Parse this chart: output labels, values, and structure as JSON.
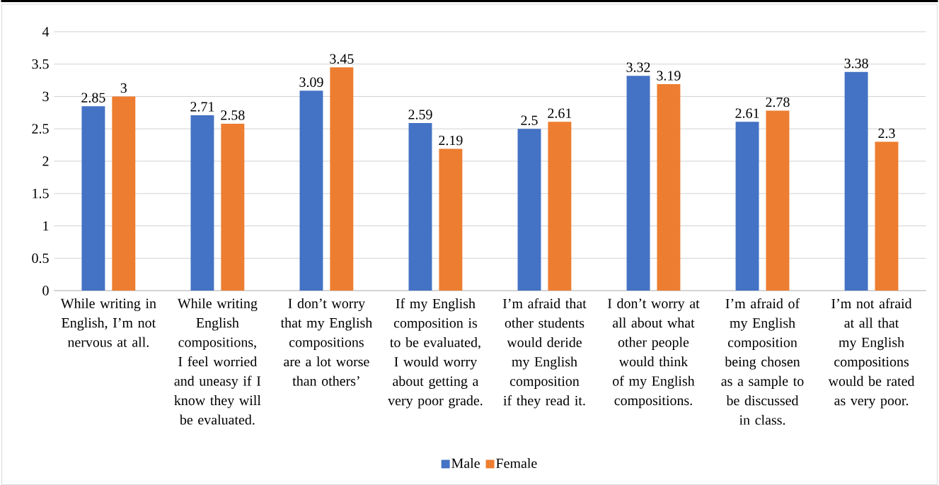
{
  "chart_data": {
    "type": "bar",
    "categories": [
      "While writing in English, I’m not nervous at all.",
      "While writing English compositions, I feel worried and uneasy if I know they will be evaluated.",
      "I don’t worry that my English compositions are a lot worse than others’",
      "If my English composition is to be evaluated, I would worry about getting a very poor grade.",
      "I’m afraid that other students would deride my English composition if they read it.",
      "I don’t worry at all about what other people would think of my English compositions.",
      "I’m afraid of my English composition being chosen as a sample to be discussed in class.",
      "I’m not afraid at all that my English compositions would be rated as very poor."
    ],
    "series": [
      {
        "name": "Male",
        "color": "#4472c4",
        "values": [
          2.85,
          2.71,
          3.09,
          2.59,
          2.5,
          3.32,
          2.61,
          3.38
        ]
      },
      {
        "name": "Female",
        "color": "#ed7d31",
        "values": [
          3,
          2.58,
          3.45,
          2.19,
          2.61,
          3.19,
          2.78,
          2.3
        ]
      }
    ],
    "ylim": [
      0,
      4
    ],
    "yticks": [
      0,
      0.5,
      1,
      1.5,
      2,
      2.5,
      3,
      3.5,
      4
    ],
    "grid": "y",
    "legend": "bottom",
    "data_labels": true
  }
}
